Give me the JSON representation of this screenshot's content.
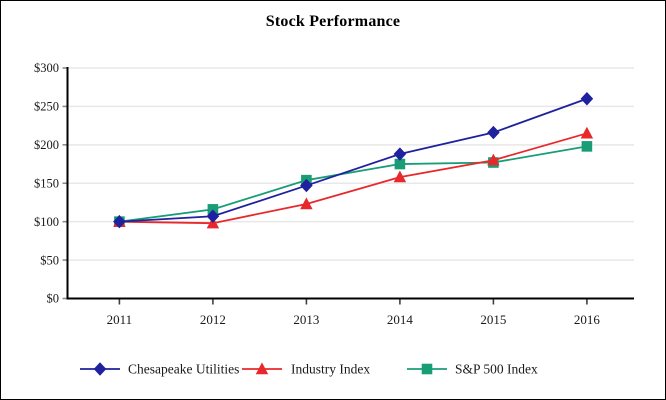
{
  "window": {
    "title": "Stock Performance"
  },
  "chart_data": {
    "type": "line",
    "title": "Stock Performance",
    "x_categories": [
      "2011",
      "2012",
      "2013",
      "2014",
      "2015",
      "2016"
    ],
    "series": [
      {
        "name": "Chesapeake Utilities",
        "marker": "diamond",
        "color": "#1f219e",
        "values": [
          100,
          107,
          147,
          188,
          216,
          260
        ]
      },
      {
        "name": "Industry Index",
        "marker": "triangle",
        "color": "#e8282b",
        "values": [
          100,
          98,
          123,
          158,
          180,
          215
        ]
      },
      {
        "name": "S&P 500 Index",
        "marker": "square",
        "color": "#189d77",
        "values": [
          100,
          116,
          154,
          175,
          177,
          198
        ]
      }
    ],
    "ylim": [
      0,
      300
    ],
    "ytick_step": 50,
    "ytick_labels": [
      "$0",
      "$50",
      "$100",
      "$150",
      "$200",
      "$250",
      "$300"
    ],
    "currency_prefix": "$",
    "grid": "horizontal",
    "legend_position": "bottom",
    "colors": {
      "axis": "#000000",
      "gridline": "#e8e8e8",
      "y_tick": "#8c8c8c",
      "x_tick": "#404040",
      "text": "#1a1a1a",
      "background": "#ffffff",
      "border": "#000000"
    }
  }
}
